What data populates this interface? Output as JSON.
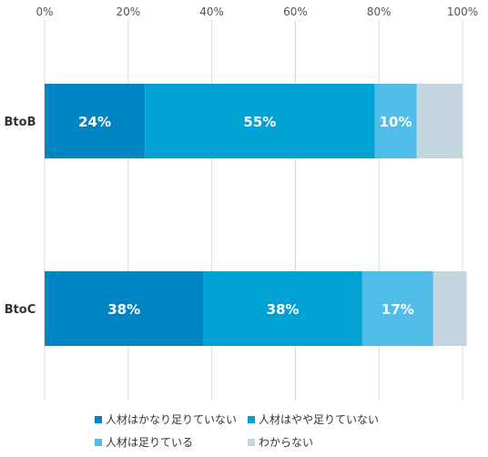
{
  "chart_data": {
    "type": "bar",
    "orientation": "horizontal",
    "stacked": true,
    "title": "",
    "xlabel": "",
    "ylabel": "",
    "xlim": [
      0,
      100
    ],
    "x_ticks": [
      "0%",
      "20%",
      "40%",
      "60%",
      "80%",
      "100%"
    ],
    "x_tick_values": [
      0,
      20,
      40,
      60,
      80,
      100
    ],
    "x_axis_position": "top",
    "grid": "vertical",
    "legend_position": "bottom",
    "categories": [
      "BtoB",
      "BtoC"
    ],
    "series": [
      {
        "name": "人材はかなり足りていない",
        "color": "#0085c4",
        "values": [
          24,
          38
        ],
        "labels": [
          "24%",
          "38%"
        ]
      },
      {
        "name": "人材はやや足りていない",
        "color": "#00a2d3",
        "values": [
          55,
          38
        ],
        "labels": [
          "55%",
          "38%"
        ]
      },
      {
        "name": "人材は足りている",
        "color": "#4fbde8",
        "values": [
          10,
          17
        ],
        "labels": [
          "10%",
          "17%"
        ]
      },
      {
        "name": "わからない",
        "color": "#c3d5de",
        "values": [
          11,
          8
        ],
        "labels": [
          "",
          ""
        ]
      }
    ]
  }
}
